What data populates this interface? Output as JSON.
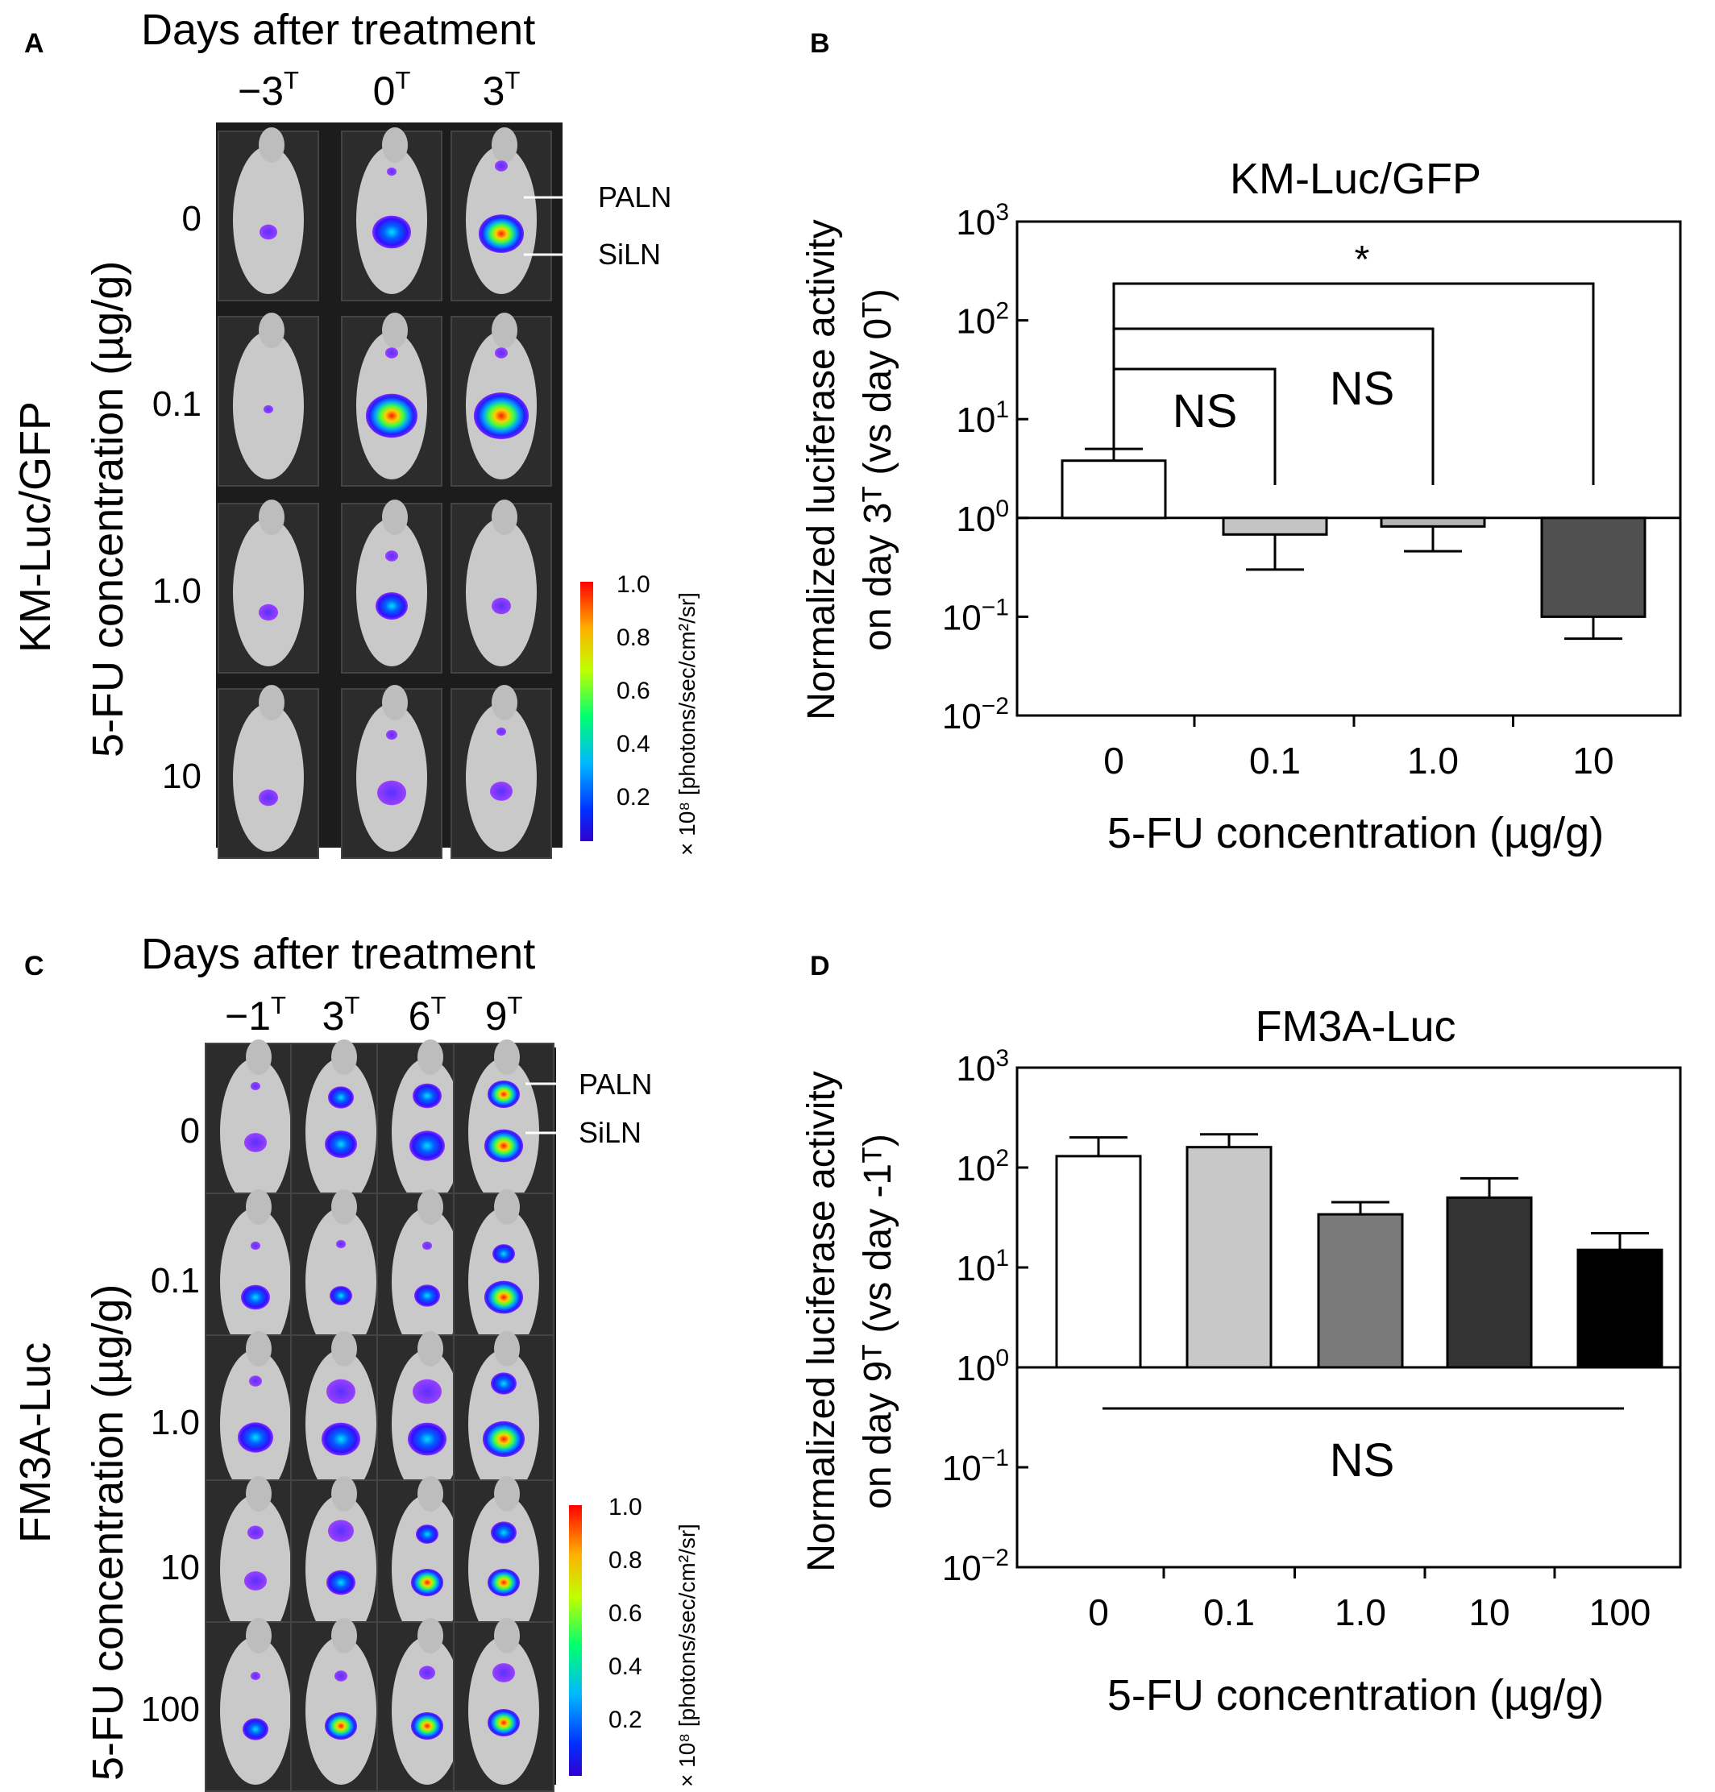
{
  "panels": {
    "A": {
      "letter": "A",
      "header": "Days after treatment",
      "days": [
        {
          "base": "−3",
          "sup": "T"
        },
        {
          "base": "0",
          "sup": "T"
        },
        {
          "base": "3",
          "sup": "T"
        }
      ],
      "side_title": "KM-Luc/GFP",
      "side_subtitle": "5-FU concentration (µg/g)",
      "concentrations": [
        "0",
        "0.1",
        "1.0",
        "10"
      ],
      "annotations": [
        "PALN",
        "SiLN"
      ],
      "scale_label": "× 10⁸ [photons/sec/cm²/sr]",
      "scale_ticks": [
        "1.0",
        "0.8",
        "0.6",
        "0.4",
        "0.2"
      ]
    },
    "C": {
      "letter": "C",
      "header": "Days after treatment",
      "days": [
        {
          "base": "−1",
          "sup": "T"
        },
        {
          "base": "3",
          "sup": "T"
        },
        {
          "base": "6",
          "sup": "T"
        },
        {
          "base": "9",
          "sup": "T"
        }
      ],
      "side_title": "FM3A-Luc",
      "side_subtitle": "5-FU concentration (µg/g)",
      "concentrations": [
        "0",
        "0.1",
        "1.0",
        "10",
        "100"
      ],
      "annotations": [
        "PALN",
        "SiLN"
      ],
      "scale_label": "× 10⁸ [photons/sec/cm²/sr]",
      "scale_ticks": [
        "1.0",
        "0.8",
        "0.6",
        "0.4",
        "0.2"
      ]
    }
  },
  "chart_data": [
    {
      "panel": "B",
      "type": "bar",
      "title": "KM-Luc/GFP",
      "xlabel": "5-FU concentration (µg/g)",
      "ylabel_line1": "Normalized luciferase activity",
      "ylabel_line2": "on day 3ᵀ (vs day 0ᵀ)",
      "yscale": "log",
      "ylim": [
        0.01,
        1000
      ],
      "baseline": 1,
      "y_ticks": [
        {
          "base": "10",
          "exp": "3"
        },
        {
          "base": "10",
          "exp": "2"
        },
        {
          "base": "10",
          "exp": "1"
        },
        {
          "base": "10",
          "exp": "0"
        },
        {
          "base": "10",
          "exp": "−1"
        },
        {
          "base": "10",
          "exp": "−2"
        }
      ],
      "categories": [
        "0",
        "0.1",
        "1.0",
        "10"
      ],
      "values": [
        3.8,
        0.68,
        0.82,
        0.1
      ],
      "error_upper": [
        5.0,
        0.68,
        0.82,
        0.1
      ],
      "error_lower": [
        3.8,
        0.3,
        0.46,
        0.06
      ],
      "bar_colors": [
        "#ffffff",
        "#c4c4c4",
        "#b4b4b4",
        "#505050"
      ],
      "significance": [
        {
          "from": "0",
          "to": "0.1",
          "label": "NS"
        },
        {
          "from": "0",
          "to": "1.0",
          "label": "NS"
        },
        {
          "from": "0",
          "to": "10",
          "label": "*"
        }
      ]
    },
    {
      "panel": "D",
      "type": "bar",
      "title": "FM3A-Luc",
      "xlabel": "5-FU concentration (µg/g)",
      "ylabel_line1": "Normalized luciferase activity",
      "ylabel_line2": "on day 9ᵀ (vs day -1ᵀ)",
      "yscale": "log",
      "ylim": [
        0.01,
        1000
      ],
      "baseline": 1,
      "y_ticks": [
        {
          "base": "10",
          "exp": "3"
        },
        {
          "base": "10",
          "exp": "2"
        },
        {
          "base": "10",
          "exp": "1"
        },
        {
          "base": "10",
          "exp": "0"
        },
        {
          "base": "10",
          "exp": "−1"
        },
        {
          "base": "10",
          "exp": "−2"
        }
      ],
      "categories": [
        "0",
        "0.1",
        "1.0",
        "10",
        "100"
      ],
      "values": [
        130,
        160,
        34,
        50,
        15
      ],
      "error_upper": [
        200,
        215,
        45,
        78,
        22
      ],
      "error_lower": [
        130,
        160,
        34,
        50,
        15
      ],
      "bar_colors": [
        "#ffffff",
        "#c8c8c8",
        "#7a7a7a",
        "#333333",
        "#000000"
      ],
      "significance": [
        {
          "from": "0",
          "to": "100",
          "label": "NS",
          "style": "line-below"
        }
      ]
    }
  ]
}
